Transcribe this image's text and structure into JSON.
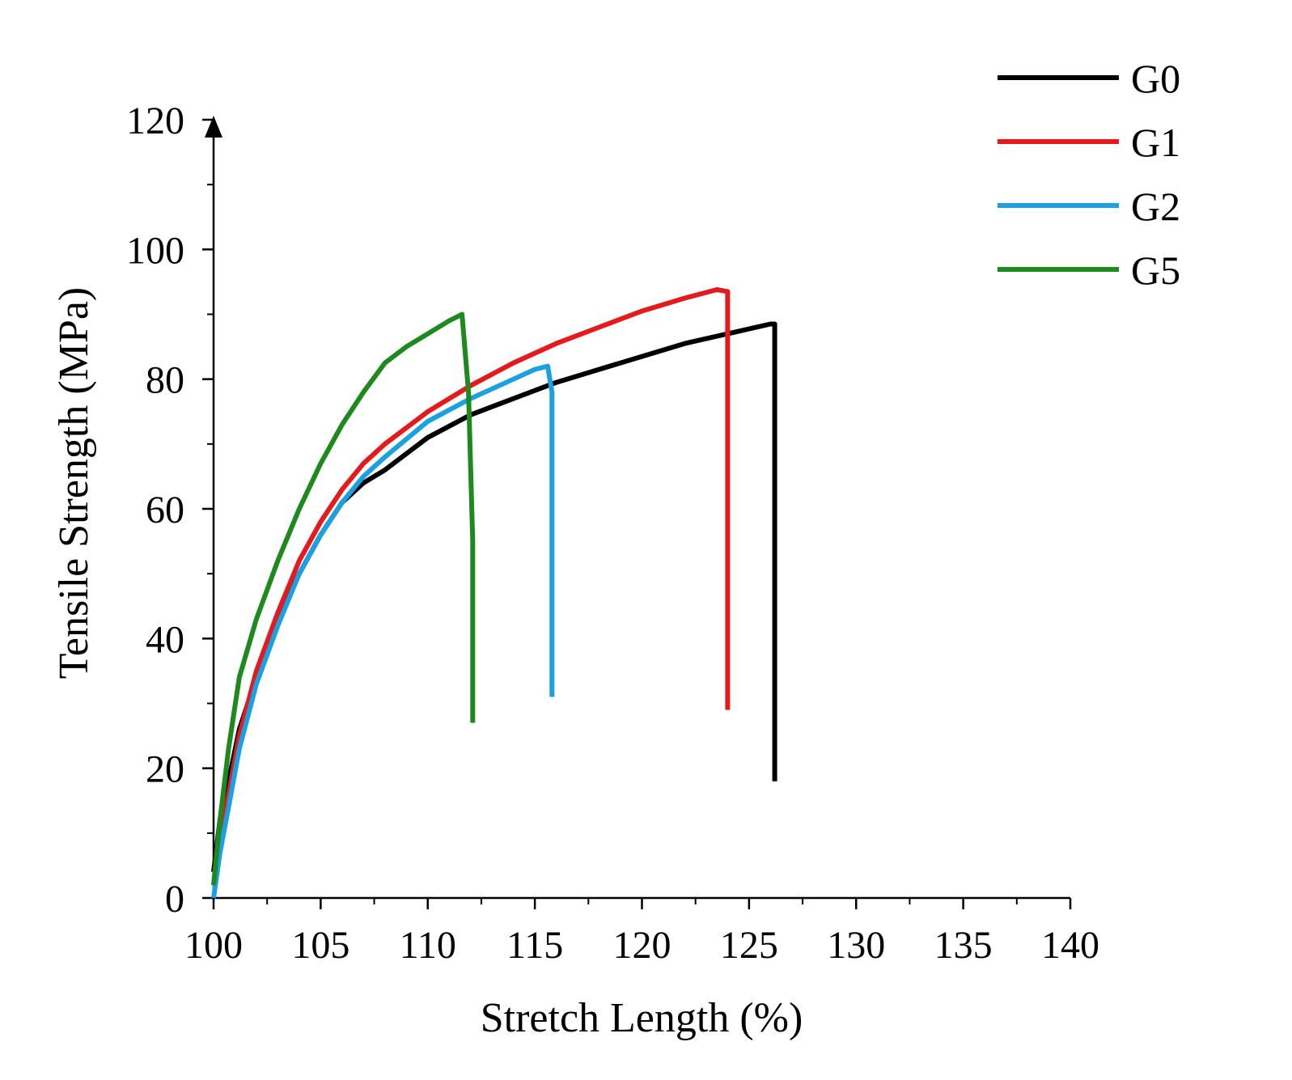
{
  "chart_data": {
    "type": "line",
    "title": "",
    "xlabel": "Stretch Length (%)",
    "ylabel": "Tensile Strength (MPa)",
    "xlim": [
      100,
      140
    ],
    "ylim": [
      0,
      120
    ],
    "xticks": [
      100,
      105,
      110,
      115,
      120,
      125,
      130,
      135,
      140
    ],
    "yticks": [
      0,
      20,
      40,
      60,
      80,
      100,
      120
    ],
    "xtick_labels": [
      "100",
      "105",
      "110",
      "115",
      "120",
      "125",
      "130",
      "135",
      "140"
    ],
    "ytick_labels": [
      "0",
      "20",
      "40",
      "60",
      "80",
      "100",
      "120"
    ],
    "grid": false,
    "legend_position": "top-right",
    "series": [
      {
        "name": "G0",
        "color": "#000000",
        "x": [
          100,
          100.3,
          100.7,
          101.2,
          102,
          103,
          104,
          105,
          106,
          107,
          108,
          110,
          112,
          114,
          116,
          118,
          120,
          122,
          124,
          126,
          126.2,
          126.2
        ],
        "y": [
          4,
          12,
          18,
          26,
          34,
          43,
          50,
          56,
          61,
          64,
          66,
          71,
          74.5,
          77,
          79.5,
          81.5,
          83.5,
          85.5,
          87,
          88.5,
          88.5,
          18
        ]
      },
      {
        "name": "G1",
        "color": "#e41a1c",
        "x": [
          100,
          100.3,
          100.7,
          101.2,
          102,
          103,
          104,
          105,
          106,
          107,
          108,
          110,
          112,
          114,
          116,
          118,
          120,
          122,
          123.5,
          124,
          124,
          124
        ],
        "y": [
          2,
          9,
          16,
          25,
          35,
          44,
          52,
          58,
          63,
          67,
          70,
          75,
          79,
          82.5,
          85.5,
          88,
          90.5,
          92.5,
          93.8,
          93.5,
          60,
          29
        ]
      },
      {
        "name": "G2",
        "color": "#1ba1e2",
        "x": [
          100,
          100.3,
          100.7,
          101.2,
          102,
          103,
          104,
          105,
          106,
          107,
          108,
          110,
          112,
          113,
          114,
          115,
          115.6,
          115.8,
          115.8
        ],
        "y": [
          0,
          7,
          14,
          23,
          33,
          42,
          50,
          56,
          61,
          65,
          68,
          73.5,
          77,
          78.5,
          80,
          81.5,
          82,
          78,
          31
        ]
      },
      {
        "name": "G5",
        "color": "#1e8a1e",
        "x": [
          100,
          100.3,
          100.7,
          101.2,
          102,
          103,
          104,
          105,
          106,
          107,
          108,
          109,
          110,
          111,
          111.6,
          111.9,
          112.1,
          112.1
        ],
        "y": [
          2,
          12,
          23,
          34,
          43,
          52,
          60,
          67,
          73,
          78,
          82.5,
          85,
          87,
          89,
          90,
          78,
          55,
          27
        ]
      }
    ]
  }
}
